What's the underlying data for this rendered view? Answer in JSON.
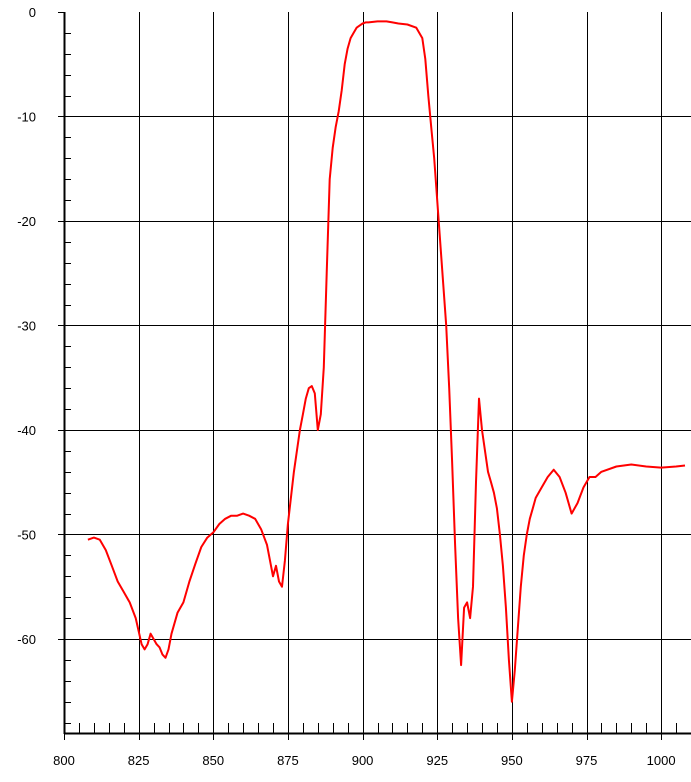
{
  "chart_data": {
    "type": "line",
    "title": "",
    "xlabel": "",
    "ylabel": "",
    "xlim": [
      800,
      1010
    ],
    "ylim": [
      -69,
      0
    ],
    "grid": true,
    "line_color": "#ff0000",
    "grid_color": "#000000",
    "x_ticks": [
      800,
      825,
      850,
      875,
      900,
      925,
      950,
      975,
      1000
    ],
    "x_tick_labels": [
      "800",
      "825",
      "850",
      "875",
      "900",
      "925",
      "950",
      "975",
      "1000"
    ],
    "y_ticks": [
      0,
      -10,
      -20,
      -30,
      -40,
      -50,
      -60
    ],
    "y_tick_labels": [
      "0",
      "-10",
      "-20",
      "-30",
      "-40",
      "-50",
      "-60"
    ],
    "series": [
      {
        "x": [
          808,
          810,
          812,
          814,
          816,
          818,
          820,
          822,
          824,
          826,
          827,
          828,
          829,
          830,
          831,
          832,
          833,
          834,
          835,
          836,
          838,
          840,
          842,
          844,
          846,
          848,
          850,
          852,
          854,
          856,
          858,
          860,
          862,
          864,
          866,
          868,
          869,
          870,
          871,
          872,
          873,
          874,
          875,
          876,
          877,
          878,
          879,
          880,
          881,
          882,
          883,
          884,
          885,
          886,
          887,
          888,
          889,
          890,
          891,
          892,
          893,
          894,
          895,
          896,
          897,
          898,
          899,
          900,
          901,
          902,
          905,
          908,
          910,
          912,
          915,
          918,
          920,
          921,
          922,
          923,
          924,
          925,
          926,
          927,
          928,
          929,
          930,
          931,
          932,
          933,
          934,
          935,
          936,
          937,
          938,
          939,
          940,
          941,
          942,
          943,
          944,
          945,
          946,
          947,
          948,
          949,
          950,
          951,
          952,
          953,
          954,
          955,
          956,
          957,
          958,
          960,
          962,
          964,
          966,
          968,
          970,
          972,
          974,
          976,
          978,
          980,
          985,
          990,
          995,
          1000,
          1005,
          1008
        ],
        "y": [
          -50.5,
          -50.3,
          -50.5,
          -51.5,
          -53,
          -54.5,
          -55.5,
          -56.5,
          -58,
          -60.5,
          -61,
          -60.5,
          -59.5,
          -60,
          -60.5,
          -60.8,
          -61.5,
          -61.8,
          -61,
          -59.5,
          -57.5,
          -56.5,
          -54.5,
          -52.8,
          -51.2,
          -50.3,
          -49.8,
          -49,
          -48.5,
          -48.2,
          -48.2,
          -48,
          -48.2,
          -48.5,
          -49.5,
          -51,
          -52.5,
          -54,
          -53,
          -54.5,
          -55,
          -52.5,
          -49,
          -46.5,
          -44,
          -42,
          -40,
          -38.5,
          -37,
          -36,
          -35.8,
          -36.5,
          -40,
          -38.5,
          -34,
          -25,
          -16,
          -13,
          -11,
          -9.5,
          -7.5,
          -5,
          -3.5,
          -2.5,
          -2,
          -1.5,
          -1.3,
          -1.1,
          -1,
          -1,
          -0.9,
          -0.9,
          -1,
          -1.1,
          -1.2,
          -1.5,
          -2.5,
          -4.5,
          -8,
          -11,
          -14,
          -18,
          -22,
          -26,
          -30,
          -36,
          -43,
          -51,
          -58,
          -62.5,
          -57,
          -56.5,
          -58,
          -55,
          -45,
          -37,
          -40,
          -42,
          -44,
          -45,
          -46,
          -47.5,
          -50,
          -53,
          -57,
          -62,
          -66,
          -63,
          -59,
          -55,
          -52,
          -50,
          -48.5,
          -47.5,
          -46.5,
          -45.5,
          -44.5,
          -43.8,
          -44.5,
          -46,
          -48,
          -47,
          -45.5,
          -44.5,
          -44.5,
          -44,
          -43.5,
          -43.3,
          -43.5,
          -43.6,
          -43.5,
          -43.4
        ]
      }
    ]
  }
}
